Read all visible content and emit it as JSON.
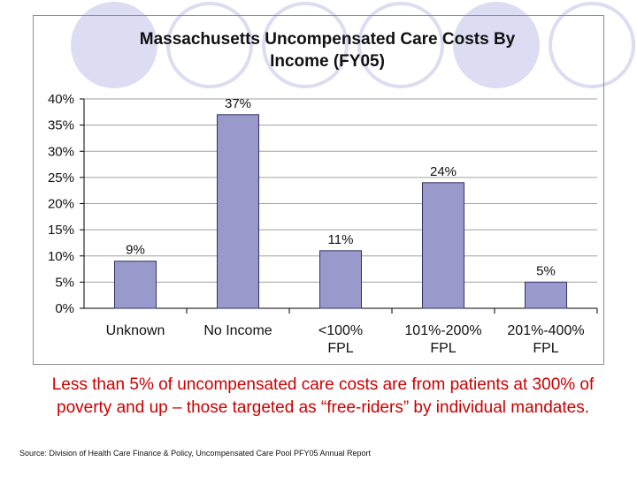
{
  "chart_data": {
    "type": "bar",
    "title": "Massachusetts Uncompensated Care Costs By\nIncome (FY05)",
    "categories": [
      "Unknown",
      "No Income",
      "<100%\nFPL",
      "101%-200%\nFPL",
      "201%-400%\nFPL"
    ],
    "values": [
      9,
      37,
      11,
      24,
      5
    ],
    "data_labels": [
      "9%",
      "37%",
      "11%",
      "24%",
      "5%"
    ],
    "y_ticks": [
      "0%",
      "5%",
      "10%",
      "15%",
      "20%",
      "25%",
      "30%",
      "35%",
      "40%"
    ],
    "ylim": [
      0,
      40
    ],
    "xlabel": "",
    "ylabel": "",
    "grid": true,
    "colors": {
      "bar": "#9999cc",
      "bar_stroke": "#333366",
      "grid": "#a0a0a0"
    }
  },
  "caption": "Less than 5% of uncompensated care costs are from patients at 300% of poverty and up – those targeted as “free-riders” by individual mandates.",
  "source": "Source: Division of Health Care Finance & Policy, Uncompensated Care Pool PFY05 Annual Report"
}
